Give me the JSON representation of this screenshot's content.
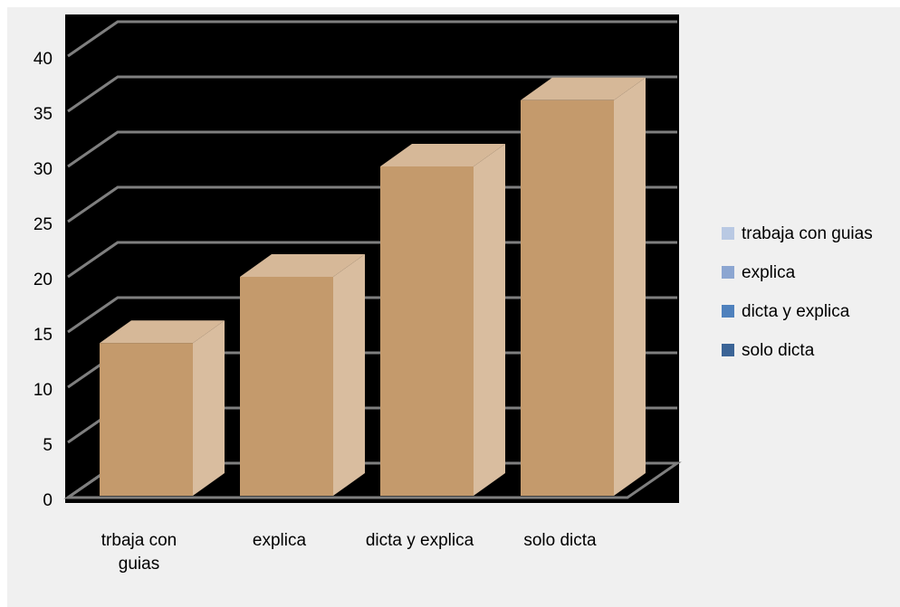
{
  "chart_data": {
    "type": "bar3d",
    "categories": [
      "trbaja con guias",
      "explica",
      "dicta y explica",
      "solo dicta"
    ],
    "values": [
      14,
      20,
      30,
      36
    ],
    "color": "#c49a6c",
    "ylim": [
      0,
      40
    ],
    "yticks": [
      0,
      5,
      10,
      15,
      20,
      25,
      30,
      35,
      40
    ],
    "grid": true,
    "legend": [
      {
        "name": "trabaja con guias",
        "color": "#b9c9e3"
      },
      {
        "name": "explica",
        "color": "#8ca6d1"
      },
      {
        "name": "dicta y explica",
        "color": "#4f81bd"
      },
      {
        "name": "solo dicta",
        "color": "#3b6496"
      }
    ]
  }
}
